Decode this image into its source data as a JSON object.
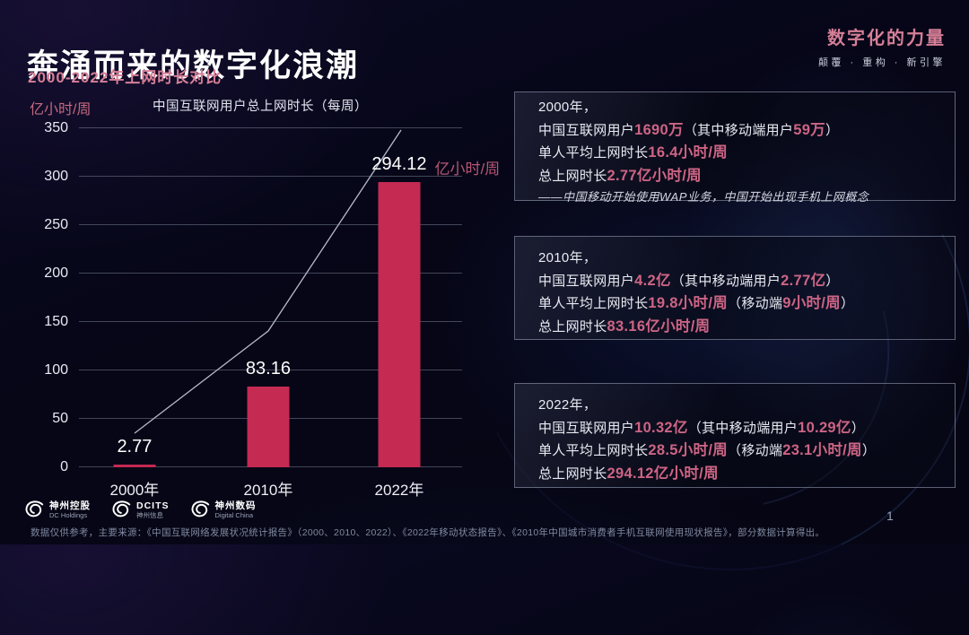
{
  "header": {
    "title": "奔涌而来的数字化浪潮",
    "subtitle": "2000-2022年上网时长对比"
  },
  "brand": {
    "title": "数字化的力量",
    "tagline": "颠覆 · 重构 · 新引擎"
  },
  "colors": {
    "background": "#060617",
    "bar": "#c52a52",
    "accent_pink": "#d67f97",
    "highlight_pink": "#cd6484",
    "grid": "#96a0b4",
    "text": "#eceef5"
  },
  "chart_data": {
    "type": "bar",
    "title": "中国互联网用户总上网时长（每周）",
    "unit_label": "亿小时/周",
    "categories": [
      "2000年",
      "2010年",
      "2022年"
    ],
    "values": [
      2.77,
      83.16,
      294.12
    ],
    "bars": [
      {
        "value": 2.77,
        "label": "2.77"
      },
      {
        "value": 83.16,
        "label": "83.16"
      },
      {
        "value": 294.12,
        "label": "294.12",
        "unit": "亿小时/周"
      }
    ],
    "ylim": [
      0,
      350
    ],
    "yticks": [
      0,
      50,
      100,
      150,
      200,
      250,
      300,
      350
    ],
    "grid": true,
    "legend": false,
    "bar_color": "#c52a52",
    "overlay": "decorative rising trend line from 2000 bar to 2022 label"
  },
  "info_boxes": [
    {
      "name": "info-box-2000",
      "lines": [
        [
          {
            "t": "2000年，"
          }
        ],
        [
          {
            "t": "中国互联网用户"
          },
          {
            "t": "1690万",
            "hl": true
          },
          {
            "t": "（其中移动端用户"
          },
          {
            "t": "59万",
            "hl": true
          },
          {
            "t": "）"
          }
        ],
        [
          {
            "t": "单人平均上网时长"
          },
          {
            "t": "16.4小时/周",
            "hl": true
          }
        ],
        [
          {
            "t": "总上网时长"
          },
          {
            "t": "2.77亿小时/周",
            "hl": true
          }
        ]
      ],
      "note": "——中国移动开始使用WAP业务，中国开始出现手机上网概念"
    },
    {
      "name": "info-box-2010",
      "lines": [
        [
          {
            "t": "2010年，"
          }
        ],
        [
          {
            "t": "中国互联网用户"
          },
          {
            "t": "4.2亿",
            "hl": true
          },
          {
            "t": "（其中移动端用户"
          },
          {
            "t": "2.77亿",
            "hl": true
          },
          {
            "t": "）"
          }
        ],
        [
          {
            "t": "单人平均上网时长"
          },
          {
            "t": "19.8小时/周",
            "hl": true
          },
          {
            "t": "（移动端"
          },
          {
            "t": "9小时/周",
            "hl": true
          },
          {
            "t": "）"
          }
        ],
        [
          {
            "t": "总上网时长"
          },
          {
            "t": "83.16亿小时/周",
            "hl": true
          }
        ]
      ],
      "note": ""
    },
    {
      "name": "info-box-2022",
      "lines": [
        [
          {
            "t": "2022年，"
          }
        ],
        [
          {
            "t": "中国互联网用户"
          },
          {
            "t": "10.32亿",
            "hl": true
          },
          {
            "t": "（其中移动端用户"
          },
          {
            "t": "10.29亿",
            "hl": true
          },
          {
            "t": "）"
          }
        ],
        [
          {
            "t": "单人平均上网时长"
          },
          {
            "t": "28.5小时/周",
            "hl": true
          },
          {
            "t": "（移动端"
          },
          {
            "t": "23.1小时/周",
            "hl": true
          },
          {
            "t": "）"
          }
        ],
        [
          {
            "t": "总上网时长"
          },
          {
            "t": "294.12亿小时/周",
            "hl": true
          }
        ]
      ],
      "note": ""
    }
  ],
  "footer": {
    "logos": [
      {
        "top": "神州控股",
        "bottom": "DC Holdings"
      },
      {
        "top": "DCITS",
        "bottom": "神州信息"
      },
      {
        "top": "神州数码",
        "bottom": "Digital China"
      }
    ],
    "footnote": "数据仅供参考，主要来源：《中国互联网络发展状况统计报告》（2000、2010、2022）、《2022年移动状态报告》、《2010年中国城市消费者手机互联网使用现状报告》，部分数据计算得出。",
    "page": "1"
  }
}
